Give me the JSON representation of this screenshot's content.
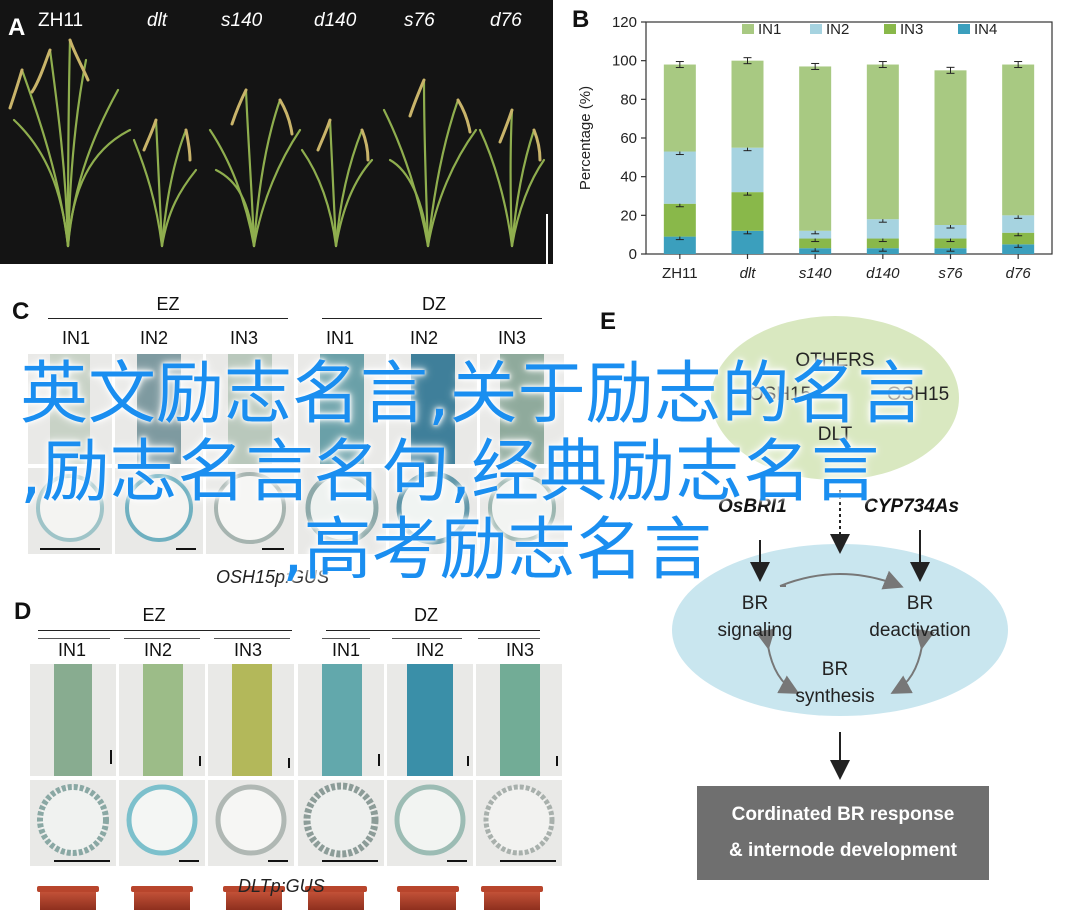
{
  "panels": {
    "a": {
      "letter": "A",
      "plant_labels": [
        "ZH11",
        "dlt",
        "s140",
        "d140",
        "s76",
        "d76"
      ]
    },
    "b": {
      "letter": "B"
    },
    "c": {
      "letter": "C",
      "groups": [
        "EZ",
        "DZ"
      ],
      "sublabels": [
        "IN1",
        "IN2",
        "IN3"
      ],
      "caption": "OSH15p:GUS"
    },
    "d": {
      "letter": "D",
      "groups": [
        "EZ",
        "DZ"
      ],
      "sublabels": [
        "IN1",
        "IN2",
        "IN3"
      ],
      "caption": "DLTp:GUS"
    },
    "e": {
      "letter": "E",
      "others": "OTHERS",
      "osh15": "OSH15",
      "osh15_right": "OSH15",
      "dlt": "DLT",
      "gene_left": "OsBRI1",
      "gene_right": "CYP734As",
      "br_signaling_1": "BR",
      "br_signaling_2": "signaling",
      "br_deactivation_1": "BR",
      "br_deactivation_2": "deactivation",
      "br_synthesis_1": "BR",
      "br_synthesis_2": "synthesis",
      "response_line1": "Cordinated BR response",
      "response_line2": "& internode development"
    }
  },
  "chart_data": {
    "type": "bar",
    "stacked": true,
    "categories": [
      "ZH11",
      "dlt",
      "s140",
      "d140",
      "s76",
      "d76"
    ],
    "category_italic": [
      false,
      true,
      true,
      true,
      true,
      true
    ],
    "series": [
      {
        "name": "IN1",
        "values": [
          45,
          45,
          85,
          80,
          80,
          78
        ],
        "color": "#a8c982"
      },
      {
        "name": "IN2",
        "values": [
          27,
          23,
          4,
          10,
          7,
          9
        ],
        "color": "#a6d3e0"
      },
      {
        "name": "IN3",
        "values": [
          17,
          20,
          5,
          5,
          5,
          6
        ],
        "color": "#89b84a"
      },
      {
        "name": "IN4",
        "values": [
          9,
          12,
          3,
          3,
          3,
          5
        ],
        "color": "#3b9fbd"
      }
    ],
    "ylabel": "Percentage (%)",
    "ylim": [
      0,
      120
    ],
    "yticks": [
      0,
      20,
      40,
      60,
      80,
      100,
      120
    ],
    "legend": "top",
    "grid": false
  },
  "watermark": {
    "line1": "英文励志名言,关于励志的名言",
    "line2": ",励志名言名句,经典励志名言",
    "line3": ",高考励志名言"
  },
  "colors": {
    "watermark": "#1a8ef0",
    "ellipse_top": "#d9e8c0",
    "ellipse_bottom": "#c9e6ef",
    "response_box": "#6f6f6f"
  }
}
